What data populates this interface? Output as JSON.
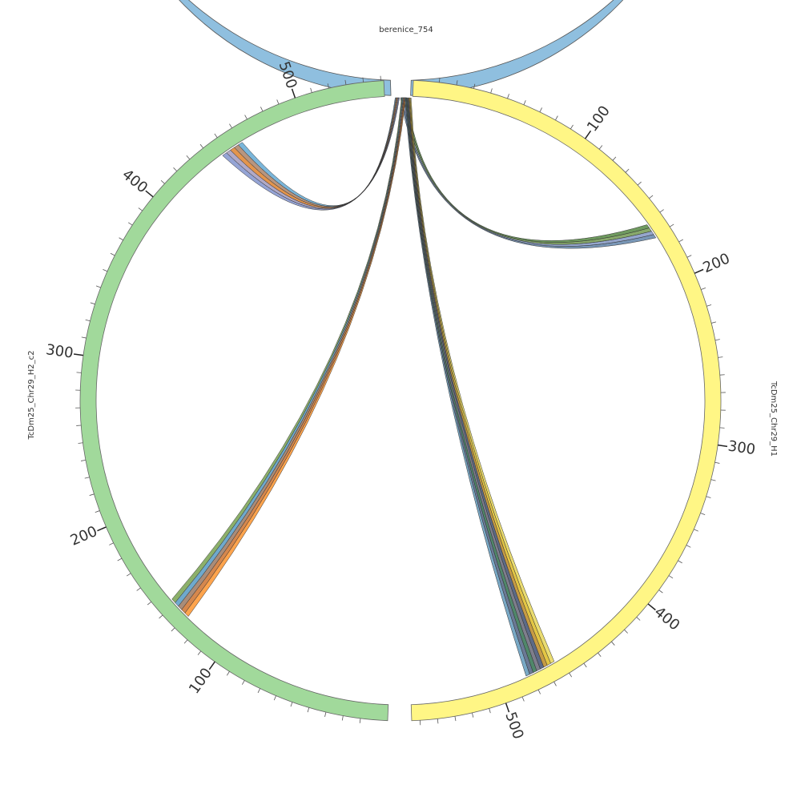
{
  "title": "berenice_754",
  "segments": [
    {
      "label": "TcDm25_Chr29_H1",
      "ticks": [
        100,
        200,
        300,
        400,
        500
      ]
    },
    {
      "label": "TcDm25_Chr29_H2_c2",
      "ticks": [
        100,
        200,
        300,
        400,
        500
      ]
    }
  ]
}
